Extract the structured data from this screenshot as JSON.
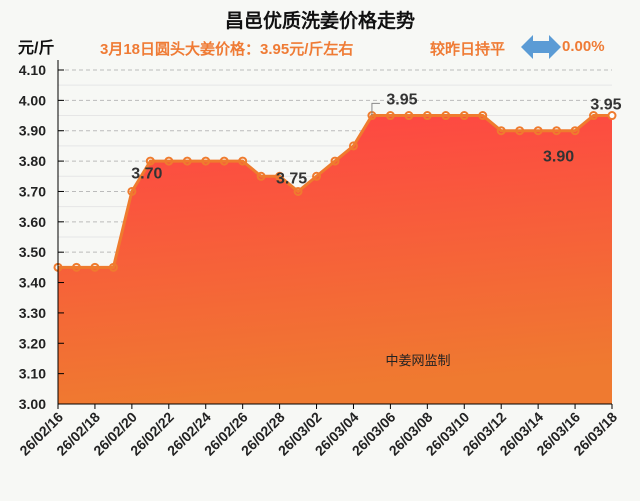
{
  "header": {
    "title": "昌邑优质洗姜价格走势",
    "unit": "元/斤",
    "subtitle": "3月18日圆头大姜价格：3.95元/斤左右",
    "compare": "较昨日持平",
    "change": "0.00%",
    "arrow_icon": "double-arrow-icon"
  },
  "colors": {
    "line": "#ef7b2e",
    "fill_top": "#ff4444",
    "fill_bottom": "#ef7a30",
    "text_accent": "#ef7b35",
    "arrow": "#5b9bd5"
  },
  "chart_data": {
    "type": "area",
    "title": "昌邑优质洗姜价格走势",
    "ylabel": "元/斤",
    "ylim": [
      3.0,
      4.1
    ],
    "yticks": [
      "3.00",
      "3.10",
      "3.20",
      "3.30",
      "3.40",
      "3.50",
      "3.60",
      "3.70",
      "3.80",
      "3.90",
      "4.00",
      "4.10"
    ],
    "xtick_labels": [
      "26/02/16",
      "26/02/18",
      "26/02/20",
      "26/02/22",
      "26/02/24",
      "26/02/26",
      "26/02/28",
      "26/03/02",
      "26/03/04",
      "26/03/06",
      "26/03/08",
      "26/03/10",
      "26/03/12",
      "26/03/14",
      "26/03/16",
      "26/03/18"
    ],
    "values": [
      3.45,
      3.45,
      3.45,
      3.45,
      3.7,
      3.8,
      3.8,
      3.8,
      3.8,
      3.8,
      3.8,
      3.75,
      3.75,
      3.7,
      3.75,
      3.8,
      3.85,
      3.95,
      3.95,
      3.95,
      3.95,
      3.95,
      3.95,
      3.95,
      3.9,
      3.9,
      3.9,
      3.9,
      3.9,
      3.95,
      3.95
    ],
    "data_labels": [
      {
        "index": 4,
        "text": "3.70"
      },
      {
        "index": 12,
        "text": "3.75"
      },
      {
        "index": 17,
        "text": "3.95"
      },
      {
        "index": 27,
        "text": "3.90"
      },
      {
        "index": 30,
        "text": "3.95"
      }
    ],
    "annotation": "中姜网监制",
    "grid": true
  }
}
